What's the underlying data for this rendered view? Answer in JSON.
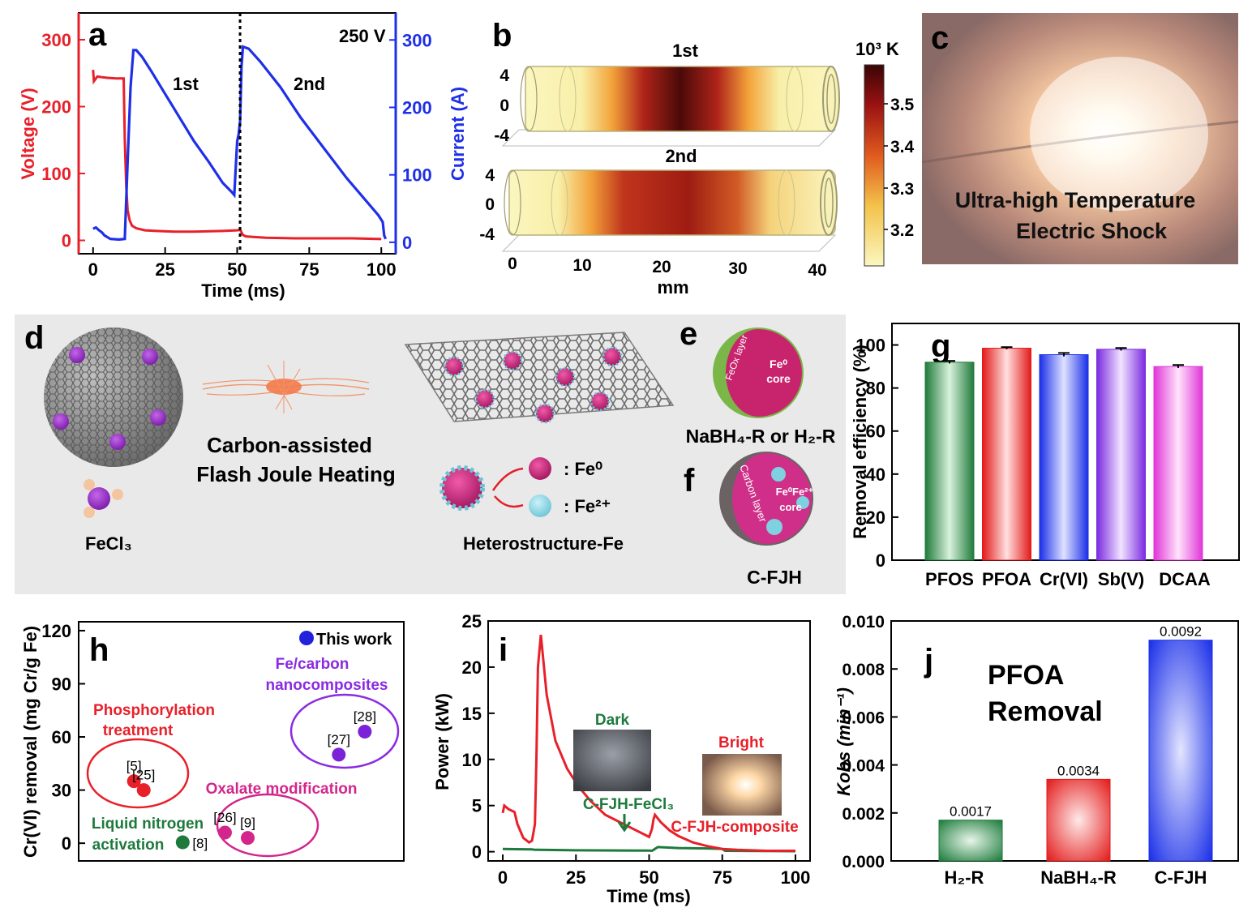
{
  "panel_letters": {
    "a": "a",
    "b": "b",
    "c": "c",
    "d": "d",
    "e": "e",
    "f": "f",
    "g": "g",
    "h": "h",
    "i": "i",
    "j": "j"
  },
  "colors": {
    "red": "#e8202a",
    "blue": "#1f2fe8",
    "green": "#1e7a3c",
    "purple": "#8a2be2",
    "magenta": "#d2268c",
    "gray_bg": "#e9e9e9"
  },
  "panel_a": {
    "annotation": "250 V",
    "label_1st": "1st",
    "label_2nd": "2nd"
  },
  "panel_b": {
    "label_1st": "1st",
    "label_2nd": "2nd",
    "y_ticks": [
      "4",
      "0",
      "-4"
    ],
    "x_ticks": [
      "0",
      "10",
      "20",
      "30",
      "40"
    ],
    "xlabel": "mm",
    "colorbar_title": "10³ K",
    "colorbar_ticks": [
      "3.5",
      "3.4",
      "3.3",
      "3.2"
    ]
  },
  "panel_c": {
    "caption_line1": "Ultra-high Temperature",
    "caption_line2": "Electric Shock"
  },
  "panel_d": {
    "precursor_label": "FeCl₃",
    "process_line1": "Carbon-assisted",
    "process_line2": "Flash Joule Heating",
    "product_label": "Heterostructure-Fe",
    "legend_fe0": ": Fe⁰",
    "legend_fe2": ": Fe²⁺"
  },
  "panel_e": {
    "shell_label": "FeOx layer",
    "core_label_1": "Fe⁰",
    "core_label_2": "core",
    "caption": "NaBH₄-R or H₂-R"
  },
  "panel_f": {
    "shell_label": "Carbon layer",
    "core_label_1": "Fe⁰Fe²⁺",
    "core_label_2": "core",
    "caption": "C-FJH"
  },
  "panel_h": {
    "legend_this_work": "This work",
    "groups": [
      {
        "name": "Phosphorylation treatment",
        "line1": "Phosphorylation",
        "line2": "treatment"
      },
      {
        "name": "Fe/carbon nanocomposites",
        "line1": "Fe/carbon",
        "line2": "nanocomposites"
      },
      {
        "name": "Oxalate modification",
        "line1": "Oxalate modification"
      },
      {
        "name": "Liquid nitrogen activation",
        "line1": "Liquid nitrogen",
        "line2": "activation"
      }
    ]
  },
  "panel_i": {
    "inset_dark": "Dark",
    "inset_bright": "Bright",
    "series_green_label": "C-FJH-FeCl₃",
    "series_red_label": "C-FJH-composite"
  },
  "panel_j": {
    "title_line1": "PFOA",
    "title_line2": "Removal"
  },
  "chart_data": [
    {
      "panel": "a",
      "type": "line",
      "title": "",
      "xlabel": "Time (ms)",
      "ylabel": "Voltage (V)",
      "y2label": "Current (A)",
      "xlim": [
        -5,
        105
      ],
      "ylim": [
        -20,
        340
      ],
      "y2lim": [
        -17,
        340
      ],
      "x_ticks": [
        0,
        25,
        50,
        75,
        100
      ],
      "y_ticks": [
        0,
        100,
        200,
        300
      ],
      "y2_ticks": [
        0,
        100,
        200,
        300
      ],
      "vline_x": 51,
      "series": [
        {
          "name": "Voltage",
          "axis": "left",
          "x": [
            0,
            0.3,
            1.5,
            3,
            5,
            8,
            10,
            10.6,
            11,
            11.5,
            12,
            12.7,
            13.5,
            15,
            18,
            22,
            28,
            35,
            45,
            50,
            51,
            52,
            53,
            56,
            60,
            70,
            80,
            90,
            100
          ],
          "y": [
            255,
            238,
            245,
            244,
            243,
            242,
            242,
            242,
            150,
            80,
            45,
            30,
            22,
            18,
            15,
            14,
            13,
            13,
            14,
            15,
            16,
            8,
            6,
            5,
            4,
            3,
            3,
            3,
            2
          ]
        },
        {
          "name": "Current",
          "axis": "right",
          "x": [
            0,
            1,
            2,
            3,
            4,
            6,
            9,
            11,
            12,
            13,
            14,
            15,
            17,
            20,
            25,
            30,
            35,
            40,
            45,
            48,
            49,
            50,
            50.5,
            51,
            51.5,
            52,
            54,
            58,
            65,
            72,
            80,
            88,
            95,
            99,
            100.5,
            101,
            101.5
          ],
          "y": [
            20,
            22,
            18,
            15,
            10,
            5,
            4,
            5,
            120,
            230,
            285,
            285,
            275,
            255,
            220,
            185,
            150,
            120,
            88,
            75,
            70,
            150,
            160,
            180,
            260,
            290,
            287,
            268,
            230,
            185,
            140,
            95,
            60,
            40,
            30,
            10,
            5
          ]
        }
      ]
    },
    {
      "panel": "g",
      "type": "bar",
      "title": "",
      "xlabel": "",
      "ylabel": "Removal efficiency (%)",
      "categories": [
        "PFOS",
        "PFOA",
        "Cr(VI)",
        "Sb(V)",
        "DCAA"
      ],
      "values": [
        92,
        98.5,
        95.5,
        98,
        90
      ],
      "errors": [
        0.6,
        0.5,
        0.8,
        0.6,
        0.7
      ],
      "ylim": [
        0,
        110
      ],
      "y_ticks": [
        0,
        20,
        40,
        60,
        80,
        100
      ]
    },
    {
      "panel": "h",
      "type": "scatter",
      "title": "",
      "xlabel": "",
      "ylabel": "Cr(VI) removal (mg Cr/g Fe)",
      "ylim": [
        -10,
        125
      ],
      "y_ticks": [
        0,
        30,
        60,
        90,
        120
      ],
      "points": [
        {
          "ref": "[5]",
          "group": "Phosphorylation treatment",
          "x": 0.17,
          "y": 35
        },
        {
          "ref": "[25]",
          "group": "Phosphorylation treatment",
          "x": 0.2,
          "y": 30
        },
        {
          "ref": "[28]",
          "group": "Fe/carbon nanocomposites",
          "x": 0.88,
          "y": 63
        },
        {
          "ref": "[27]",
          "group": "Fe/carbon nanocomposites",
          "x": 0.8,
          "y": 50
        },
        {
          "ref": "[26]",
          "group": "Oxalate modification",
          "x": 0.45,
          "y": 6
        },
        {
          "ref": "[9]",
          "group": "Oxalate modification",
          "x": 0.52,
          "y": 3
        },
        {
          "ref": "[8]",
          "group": "Liquid nitrogen activation",
          "x": 0.32,
          "y": 0.5
        }
      ]
    },
    {
      "panel": "i",
      "type": "line",
      "title": "",
      "xlabel": "Time (ms)",
      "ylabel": "Power (kW)",
      "xlim": [
        -5,
        105
      ],
      "ylim": [
        -1,
        25
      ],
      "x_ticks": [
        0,
        25,
        50,
        75,
        100
      ],
      "y_ticks": [
        0,
        5,
        10,
        15,
        20,
        25
      ],
      "series": [
        {
          "name": "C-FJH-composite",
          "x": [
            0,
            0.5,
            2,
            4,
            5,
            7,
            9,
            10,
            11,
            11.5,
            12,
            13,
            15,
            18,
            22,
            26,
            30,
            35,
            40,
            45,
            50,
            51,
            51.5,
            52,
            54,
            57,
            60,
            65,
            70,
            75,
            80,
            90,
            100
          ],
          "y": [
            4.2,
            5,
            4.6,
            4.3,
            3,
            1.5,
            1,
            1.2,
            3,
            10,
            20,
            23.5,
            17,
            12,
            9,
            7,
            5.5,
            4,
            3.2,
            2.4,
            1.6,
            2.5,
            3.5,
            4,
            3.2,
            2.3,
            1.7,
            1,
            0.6,
            0.3,
            0.2,
            0.1,
            0.1
          ]
        },
        {
          "name": "C-FJH-FeCl₃",
          "x": [
            0,
            10,
            11,
            12,
            25,
            50,
            51,
            52,
            53,
            60,
            70,
            75,
            76,
            100
          ],
          "y": [
            0.3,
            0.25,
            0.2,
            0.2,
            0.15,
            0.12,
            0.1,
            0.3,
            0.5,
            0.4,
            0.35,
            0.3,
            0.1,
            0.05
          ]
        }
      ]
    },
    {
      "panel": "j",
      "type": "bar",
      "title": "PFOA Removal",
      "xlabel": "",
      "ylabel": "Kobs (min⁻¹)",
      "categories": [
        "H₂-R",
        "NaBH₄-R",
        "C-FJH"
      ],
      "values": [
        0.0017,
        0.0034,
        0.0092
      ],
      "value_labels": [
        "0.0017",
        "0.0034",
        "0.0092"
      ],
      "ylim": [
        0,
        0.01
      ],
      "y_ticks": [
        "0.000",
        "0.002",
        "0.004",
        "0.006",
        "0.008",
        "0.010"
      ]
    }
  ]
}
